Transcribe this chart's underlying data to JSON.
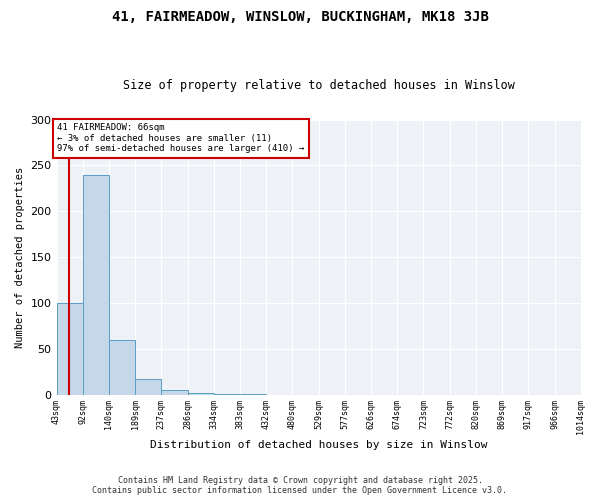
{
  "title": "41, FAIRMEADOW, WINSLOW, BUCKINGHAM, MK18 3JB",
  "subtitle": "Size of property relative to detached houses in Winslow",
  "xlabel": "Distribution of detached houses by size in Winslow",
  "ylabel": "Number of detached properties",
  "bin_edges": [
    43,
    92,
    140,
    189,
    237,
    286,
    334,
    383,
    432,
    480,
    529,
    577,
    626,
    674,
    723,
    772,
    820,
    869,
    917,
    966,
    1014
  ],
  "bar_heights": [
    100,
    240,
    60,
    17,
    5,
    2,
    1,
    1,
    0,
    0,
    0,
    0,
    0,
    0,
    0,
    0,
    0,
    0,
    0,
    0
  ],
  "bar_color": "#c5d8ea",
  "bar_edge_color": "#5a9dc5",
  "subject_size": 66,
  "annotation_line1": "41 FAIRMEADOW: 66sqm",
  "annotation_line2": "← 3% of detached houses are smaller (11)",
  "annotation_line3": "97% of semi-detached houses are larger (410) →",
  "red_line_color": "#cc0000",
  "ylim": [
    0,
    300
  ],
  "yticks": [
    0,
    50,
    100,
    150,
    200,
    250,
    300
  ],
  "background_color": "#eef2f7",
  "footer_line1": "Contains HM Land Registry data © Crown copyright and database right 2025.",
  "footer_line2": "Contains public sector information licensed under the Open Government Licence v3.0."
}
